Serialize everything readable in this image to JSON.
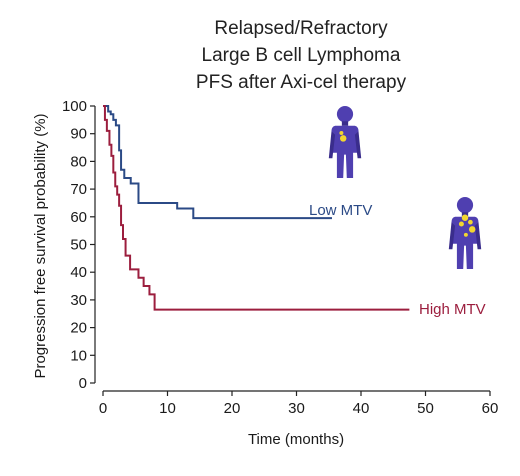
{
  "chart_data": {
    "type": "line",
    "subtype": "kaplan-meier step curve",
    "title": [
      "Relapsed/Refractory",
      "Large B cell Lymphoma",
      "PFS after Axi-cel therapy"
    ],
    "xlabel": "Time (months)",
    "ylabel": "Progression free survival probability (%)",
    "xlim": [
      0,
      60
    ],
    "ylim": [
      0,
      100
    ],
    "xticks": [
      0,
      10,
      20,
      30,
      40,
      50,
      60
    ],
    "yticks": [
      0,
      10,
      20,
      30,
      40,
      50,
      60,
      70,
      80,
      90,
      100
    ],
    "grid": false,
    "legend": "inline labels at curve ends",
    "series": [
      {
        "name": "Low MTV",
        "color": "#2b4a86",
        "icon": "person-figure-icon",
        "x": [
          0,
          0.8,
          1.2,
          1.6,
          2.0,
          2.5,
          2.8,
          3.3,
          4.3,
          5.5,
          11.5,
          14,
          35.5
        ],
        "y": [
          100,
          98,
          97,
          95,
          93,
          84,
          77,
          74,
          72,
          65,
          63,
          59.5,
          59.5
        ]
      },
      {
        "name": "High MTV",
        "color": "#9c1e3e",
        "icon": "person-figure-tumor-icon",
        "x": [
          0,
          0.3,
          0.6,
          1.0,
          1.3,
          1.6,
          1.9,
          2.2,
          2.5,
          2.8,
          3.1,
          3.5,
          4.2,
          5.5,
          6.3,
          7.2,
          8.0,
          47.5
        ],
        "y": [
          100,
          95,
          91,
          86,
          82,
          76,
          71,
          68,
          64,
          57,
          52,
          46,
          41,
          38,
          35,
          32,
          26.5,
          26.5
        ]
      }
    ]
  }
}
